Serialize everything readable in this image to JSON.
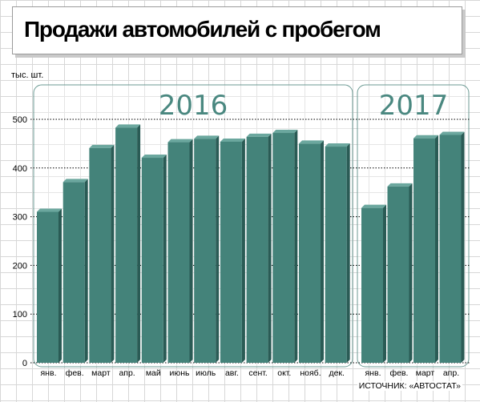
{
  "header": {
    "title": "Продажи автомобилей с пробегом",
    "unit": "тыс. шт.",
    "source": "ИСТОЧНИК: «АВТОСТАТ»"
  },
  "colors": {
    "bar_front": "#44837a",
    "bar_side": "#2a5b55",
    "bar_top": "#6ba79e",
    "group_border": "#6b9a93",
    "gridline": "#000000"
  },
  "chart_data": {
    "type": "bar",
    "title": "Продажи автомобилей с пробегом",
    "ylabel": "тыс. шт.",
    "ylim": [
      0,
      500
    ],
    "yticks": [
      0,
      100,
      200,
      300,
      400,
      500
    ],
    "grid": true,
    "groups": [
      {
        "label": "2016",
        "categories": [
          "янв.",
          "фев.",
          "март",
          "апр.",
          "май",
          "июнь",
          "июль",
          "авг.",
          "сент.",
          "окт.",
          "нояб.",
          "дек."
        ],
        "values": [
          310,
          371,
          441,
          483,
          421,
          453,
          460,
          454,
          464,
          472,
          450,
          444
        ]
      },
      {
        "label": "2017",
        "categories": [
          "янв.",
          "фев.",
          "март",
          "апр."
        ],
        "values": [
          318,
          362,
          461,
          468
        ]
      }
    ]
  }
}
